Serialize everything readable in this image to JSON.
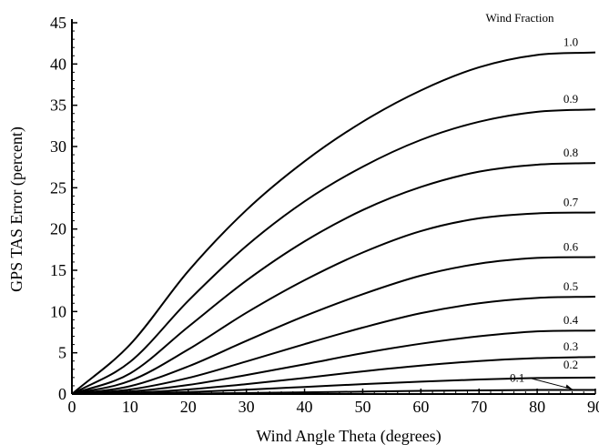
{
  "chart_data": {
    "type": "line",
    "xlabel": "Wind Angle Theta (degrees)",
    "ylabel": "GPS TAS Error (percent)",
    "legend_title": "Wind Fraction",
    "xlim": [
      0,
      90
    ],
    "ylim": [
      0,
      45
    ],
    "xticks": [
      "0",
      "10",
      "20",
      "30",
      "40",
      "50",
      "60",
      "70",
      "80",
      "90"
    ],
    "yticks": [
      "0",
      "5",
      "10",
      "15",
      "20",
      "25",
      "30",
      "35",
      "40",
      "45"
    ],
    "grid": false,
    "x": [
      0,
      10,
      20,
      30,
      40,
      50,
      60,
      70,
      80,
      90
    ],
    "series": [
      {
        "name": "0.1",
        "values": [
          0,
          0.02,
          0.06,
          0.13,
          0.21,
          0.29,
          0.38,
          0.44,
          0.49,
          0.5
        ]
      },
      {
        "name": "0.2",
        "values": [
          0,
          0.06,
          0.24,
          0.52,
          0.86,
          1.2,
          1.5,
          1.76,
          1.94,
          2.0
        ]
      },
      {
        "name": "0.3",
        "values": [
          0,
          0.14,
          0.55,
          1.2,
          1.95,
          2.75,
          3.45,
          4.0,
          4.35,
          4.5
        ]
      },
      {
        "name": "0.4",
        "values": [
          0,
          0.3,
          1.1,
          2.3,
          3.6,
          4.95,
          6.1,
          7.0,
          7.6,
          7.7
        ]
      },
      {
        "name": "0.5",
        "values": [
          0,
          0.55,
          1.95,
          3.95,
          6.05,
          8.05,
          9.8,
          11.0,
          11.65,
          11.8
        ]
      },
      {
        "name": "0.6",
        "values": [
          0,
          0.95,
          3.35,
          6.45,
          9.45,
          12.1,
          14.35,
          15.8,
          16.5,
          16.6
        ]
      },
      {
        "name": "0.7",
        "values": [
          0,
          1.6,
          5.4,
          9.85,
          13.8,
          17.15,
          19.75,
          21.3,
          21.9,
          22.0
        ]
      },
      {
        "name": "0.8",
        "values": [
          0,
          2.5,
          8.15,
          13.75,
          18.5,
          22.3,
          25.1,
          26.95,
          27.8,
          28.0
        ]
      },
      {
        "name": "0.9",
        "values": [
          0,
          3.9,
          11.3,
          17.95,
          23.35,
          27.55,
          30.8,
          33.0,
          34.2,
          34.5
        ]
      },
      {
        "name": "1.0",
        "values": [
          0,
          6.0,
          14.9,
          22.3,
          28.2,
          33.0,
          36.8,
          39.6,
          41.1,
          41.4
        ]
      }
    ]
  }
}
